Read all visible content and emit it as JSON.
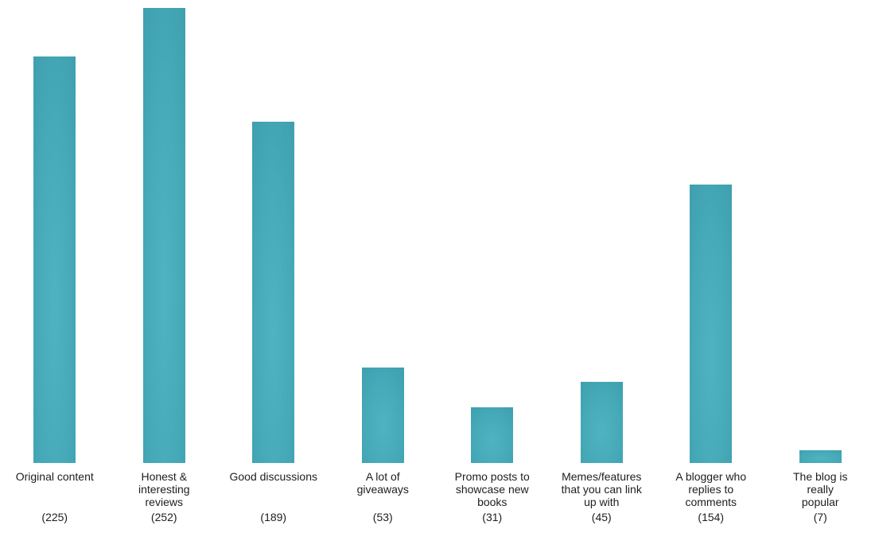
{
  "chart_data": {
    "type": "bar",
    "title": "",
    "xlabel": "",
    "ylabel": "",
    "ylim": [
      0,
      252
    ],
    "grid": false,
    "axes_visible": false,
    "legend_position": "none",
    "background_color": "#ffffff",
    "bar_color_center": "#4fb3c1",
    "bar_color_mid": "#45a9b7",
    "bar_color_edge": "#3e9dac",
    "text_color": "#1e1e1e",
    "categories": [
      "Original content",
      "Honest & interesting reviews",
      "Good discussions",
      "A lot of giveaways",
      "Promo posts to showcase new books",
      "Memes/features that you can link up with",
      "A blogger who replies to comments",
      "The blog is really popular"
    ],
    "values": [
      225,
      252,
      189,
      53,
      31,
      45,
      154,
      7
    ],
    "bars": [
      {
        "label": "Original content",
        "value": 225,
        "count_label": "(225)"
      },
      {
        "label": "Honest &\ninteresting\nreviews",
        "value": 252,
        "count_label": "(252)"
      },
      {
        "label": "Good discussions",
        "value": 189,
        "count_label": "(189)"
      },
      {
        "label": "A lot of\ngiveaways",
        "value": 53,
        "count_label": "(53)"
      },
      {
        "label": "Promo posts to\nshowcase new\nbooks",
        "value": 31,
        "count_label": "(31)"
      },
      {
        "label": "Memes/features\nthat you can link\nup with",
        "value": 45,
        "count_label": "(45)"
      },
      {
        "label": "A blogger who\nreplies to\ncomments",
        "value": 154,
        "count_label": "(154)"
      },
      {
        "label": "The blog is\nreally\npopular",
        "value": 7,
        "count_label": "(7)"
      }
    ]
  }
}
